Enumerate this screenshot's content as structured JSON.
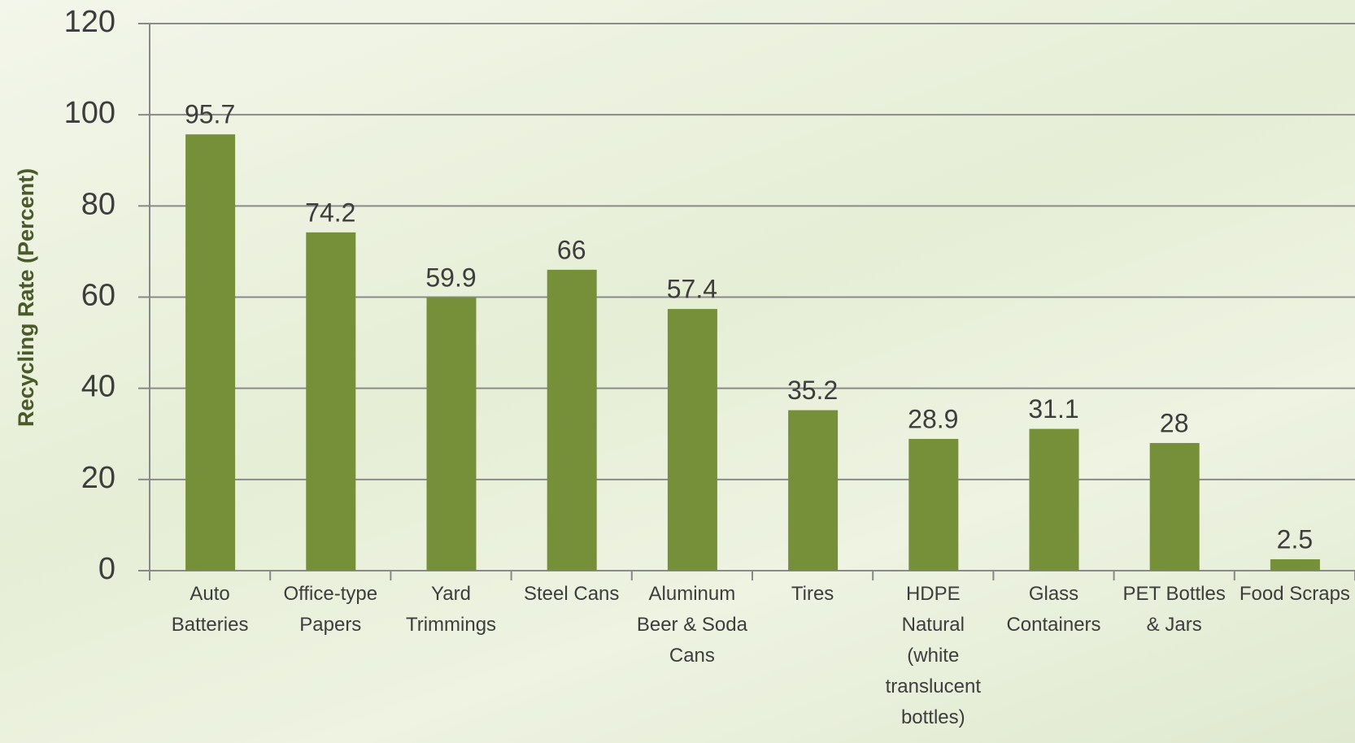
{
  "chart_data": {
    "type": "bar",
    "y_label": "Recycling Rate (Percent)",
    "categories": [
      "Auto Batteries",
      "Office-type Papers",
      "Yard Trimmings",
      "Steel Cans",
      "Aluminum Beer & Soda Cans",
      "Tires",
      "HDPE Natural (white translucent bottles)",
      "Glass Containers",
      "PET Bottles & Jars",
      "Food Scraps"
    ],
    "values": [
      95.7,
      74.2,
      59.9,
      66,
      57.4,
      35.2,
      28.9,
      31.1,
      28,
      2.5
    ],
    "color": "#76903a",
    "ylim": [
      0,
      120
    ],
    "yticks": [
      0,
      20,
      40,
      60,
      80,
      100,
      120
    ],
    "grid": true
  }
}
